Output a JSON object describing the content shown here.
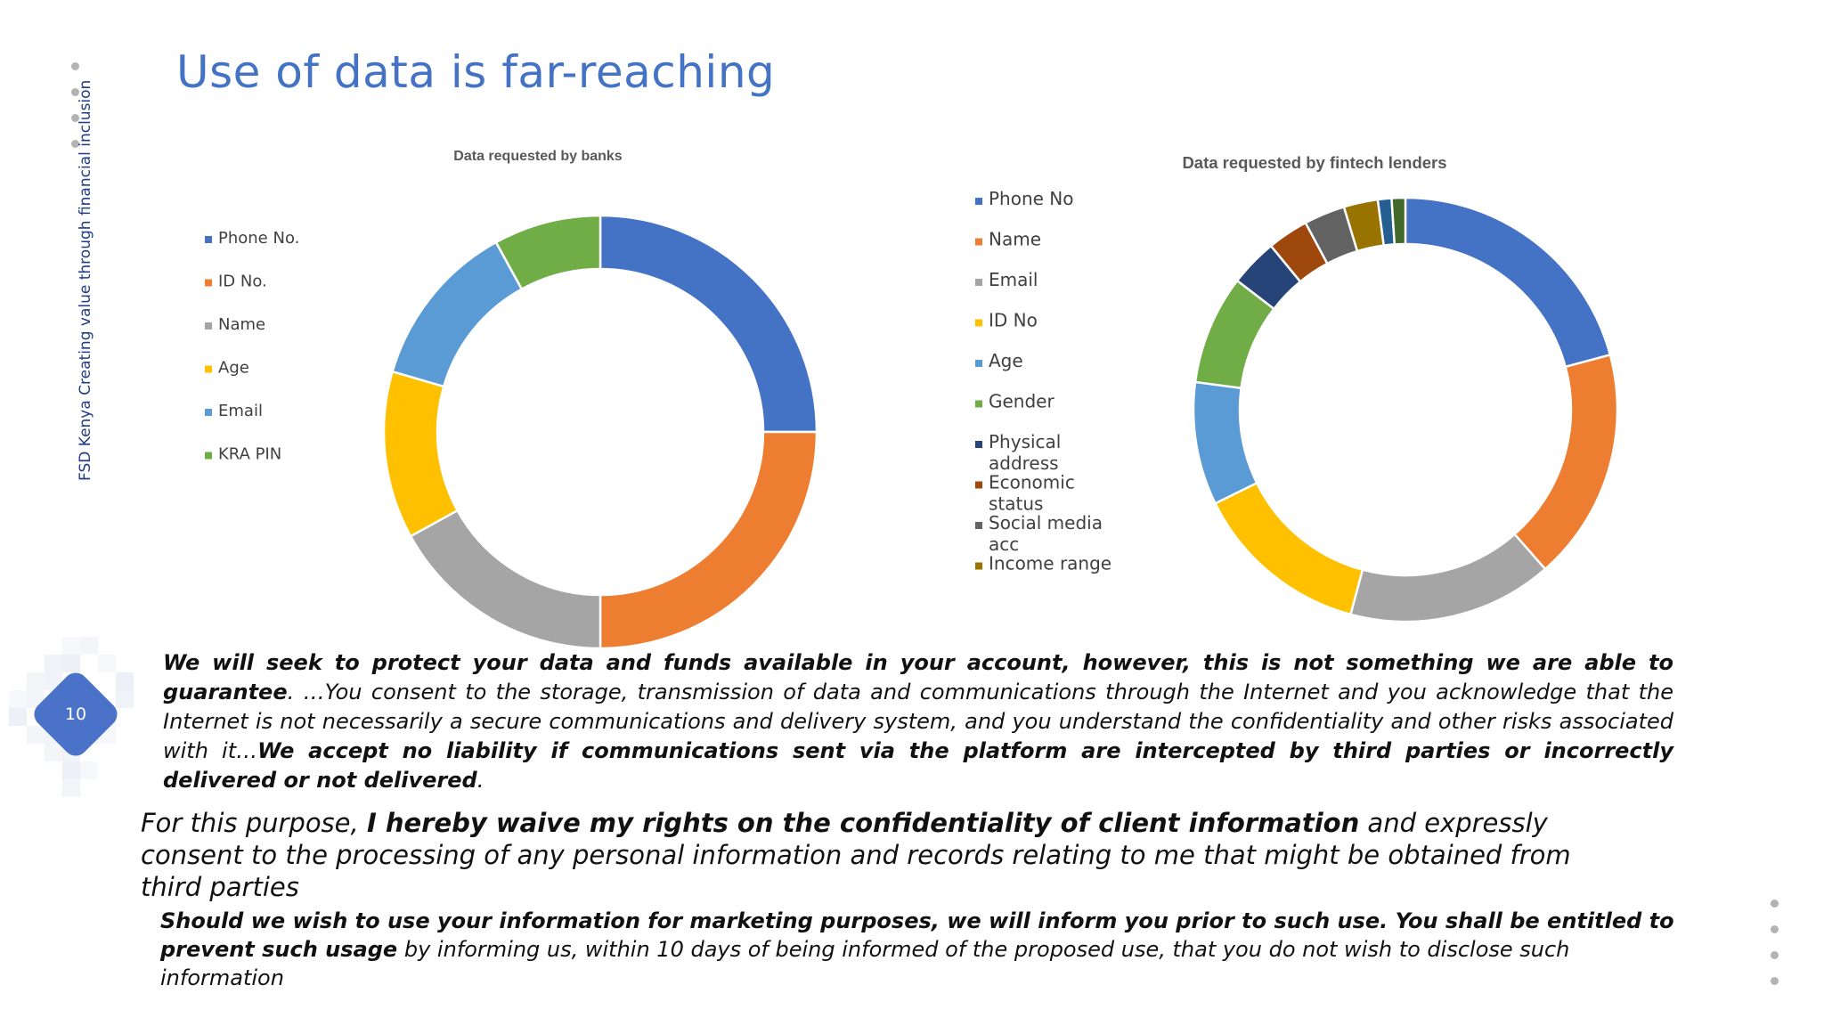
{
  "slide": {
    "title": "Use of data is far-reaching",
    "side_caption": "FSD Kenya Creating value through financial inclusion",
    "page_number": "10"
  },
  "chart_data": [
    {
      "type": "pie",
      "donut": true,
      "title": "Data requested by banks",
      "legend_position": "left",
      "categories": [
        "Phone No.",
        "ID No.",
        "Name",
        "Age",
        "Email",
        "KRA PIN"
      ],
      "values": [
        25,
        25,
        17,
        12.5,
        12.5,
        8
      ],
      "colors": [
        "#4472c4",
        "#ed7d31",
        "#a5a5a5",
        "#ffc000",
        "#5b9bd5",
        "#70ad47"
      ]
    },
    {
      "type": "pie",
      "donut": true,
      "title": "Data requested by fintech lenders",
      "legend_position": "left",
      "categories": [
        "Phone No",
        "Name",
        "Email",
        "ID No",
        "Age",
        "Gender",
        "Physical address",
        "Economic status",
        "Social media acc",
        "Income range",
        "",
        ""
      ],
      "values": [
        20,
        17,
        15,
        13,
        9,
        8,
        3.5,
        3,
        3,
        2.5,
        1,
        1
      ],
      "colors": [
        "#4472c4",
        "#ed7d31",
        "#a5a5a5",
        "#ffc000",
        "#5b9bd5",
        "#70ad47",
        "#264478",
        "#9e480e",
        "#636363",
        "#997300",
        "#255e91",
        "#43682b"
      ]
    }
  ],
  "quotes": {
    "q1": {
      "b1": "We will seek to protect your data and funds available in your account, however, this is not something we are able to guarantee",
      "t1": ". …You consent to the storage, transmission of data and communications through the Internet and you acknowledge that the Internet is not necessarily a secure communications and delivery system, and you understand the confidentiality and other risks associated with it…",
      "b2": "We accept no liability if communications sent via the platform are intercepted by third parties or incorrectly delivered or not delivered",
      "t2": "."
    },
    "q2": {
      "t1": "For this purpose, ",
      "b1": "I hereby waive my rights on the confidentiality of client information",
      "t2": " and expressly consent to the processing of any personal information and records relating to me that might be obtained from third parties"
    },
    "q3": {
      "b1": "Should we wish to use your information for marketing purposes, we will inform you prior to such use. You shall be entitled to prevent such usage",
      "t1": " by informing us, within 10 days of being informed of the proposed use, that you do not wish to disclose such information"
    }
  }
}
